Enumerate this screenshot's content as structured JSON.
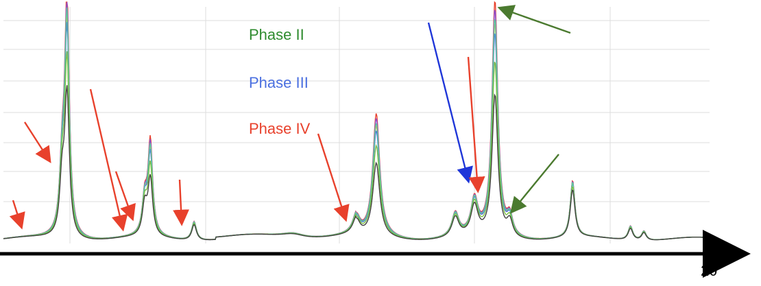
{
  "chart_data": {
    "type": "line",
    "title": "",
    "xlabel": "2θ",
    "ylabel": "",
    "grid": true,
    "x_tick_labels": [],
    "y_tick_labels": [],
    "legend_placement": "top-center",
    "legend": [
      {
        "name": "Phase II",
        "color": "#2e8b2e"
      },
      {
        "name": "Phase III",
        "color": "#4a6fe0"
      },
      {
        "name": "Phase IV",
        "color": "#e8412c"
      }
    ],
    "series": [
      {
        "color": "#e8412c",
        "peak_scale": 1.0
      },
      {
        "color": "#f1a33a",
        "peak_scale": 0.9
      },
      {
        "color": "#8a4fd6",
        "peak_scale": 0.96
      },
      {
        "color": "#4a6fe0",
        "peak_scale": 0.86
      },
      {
        "color": "#5fcf9a",
        "peak_scale": 0.92
      },
      {
        "color": "#7cc043",
        "peak_scale": 0.74
      },
      {
        "color": "#404040",
        "peak_scale": 0.6
      }
    ],
    "peaks": [
      {
        "x": 0.09,
        "height": 1.0,
        "width": 0.004
      },
      {
        "x": 0.083,
        "height": 0.26,
        "width": 0.004
      },
      {
        "x": 0.208,
        "height": 0.4,
        "width": 0.004
      },
      {
        "x": 0.2,
        "height": 0.15,
        "width": 0.004
      },
      {
        "x": 0.27,
        "height": 0.08,
        "width": 0.004
      },
      {
        "x": 0.41,
        "height": 0.02,
        "width": 0.02
      },
      {
        "x": 0.5,
        "height": 0.08,
        "width": 0.006
      },
      {
        "x": 0.528,
        "height": 0.52,
        "width": 0.006
      },
      {
        "x": 0.64,
        "height": 0.1,
        "width": 0.006
      },
      {
        "x": 0.667,
        "height": 0.15,
        "width": 0.006
      },
      {
        "x": 0.696,
        "height": 1.0,
        "width": 0.005
      },
      {
        "x": 0.717,
        "height": 0.08,
        "width": 0.005
      },
      {
        "x": 0.806,
        "height": 0.24,
        "width": 0.004
      },
      {
        "x": 0.888,
        "height": 0.06,
        "width": 0.004
      },
      {
        "x": 0.907,
        "height": 0.04,
        "width": 0.004
      }
    ],
    "annotations": [
      {
        "type": "arrow",
        "color": "#e8412c",
        "target_peak": 0.018
      },
      {
        "type": "arrow",
        "color": "#e8412c",
        "target_peak": 0.07
      },
      {
        "type": "arrow",
        "color": "#e8412c",
        "target_peak": 0.175
      },
      {
        "type": "arrow",
        "color": "#e8412c",
        "target_peak": 0.185
      },
      {
        "type": "arrow",
        "color": "#e8412c",
        "target_peak": 0.258
      },
      {
        "type": "arrow",
        "color": "#e8412c",
        "target_peak": 0.49
      },
      {
        "type": "arrow",
        "color": "#4a6fe0",
        "target_peak": 0.667
      },
      {
        "type": "arrow",
        "color": "#e8412c",
        "target_peak": 0.68
      },
      {
        "type": "arrow",
        "color": "#4b7a2f",
        "target_peak": 0.7
      },
      {
        "type": "arrow",
        "color": "#4b7a2f",
        "target_peak": 0.717
      }
    ]
  }
}
